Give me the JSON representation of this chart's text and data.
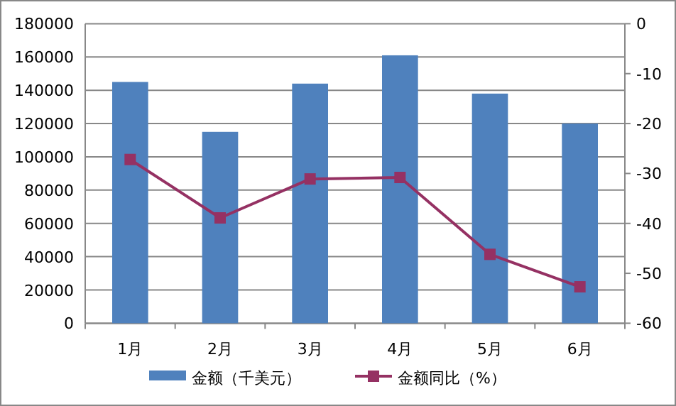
{
  "chart_data": {
    "type": "bar",
    "categories": [
      "1月",
      "2月",
      "3月",
      "4月",
      "5月",
      "6月"
    ],
    "series": [
      {
        "name": "金额（千美元）",
        "color": "#4f81bd",
        "values": [
          145000,
          115000,
          144000,
          161000,
          138000,
          120000
        ]
      },
      {
        "name": "金额同比（%）",
        "type": "line",
        "axis": "y2",
        "color": "#953163",
        "marker": "square",
        "values": [
          -27.2,
          -38.9,
          -31.1,
          -30.8,
          -46.2,
          -52.7
        ]
      }
    ],
    "ylim": [
      0,
      180000
    ],
    "yticks": [
      0,
      20000,
      40000,
      60000,
      80000,
      100000,
      120000,
      140000,
      160000,
      180000
    ],
    "y2lim": [
      -60,
      0
    ],
    "y2ticks": [
      -60,
      -50,
      -40,
      -30,
      -20,
      -10,
      0
    ],
    "grid": "y",
    "legend": "bottom"
  }
}
